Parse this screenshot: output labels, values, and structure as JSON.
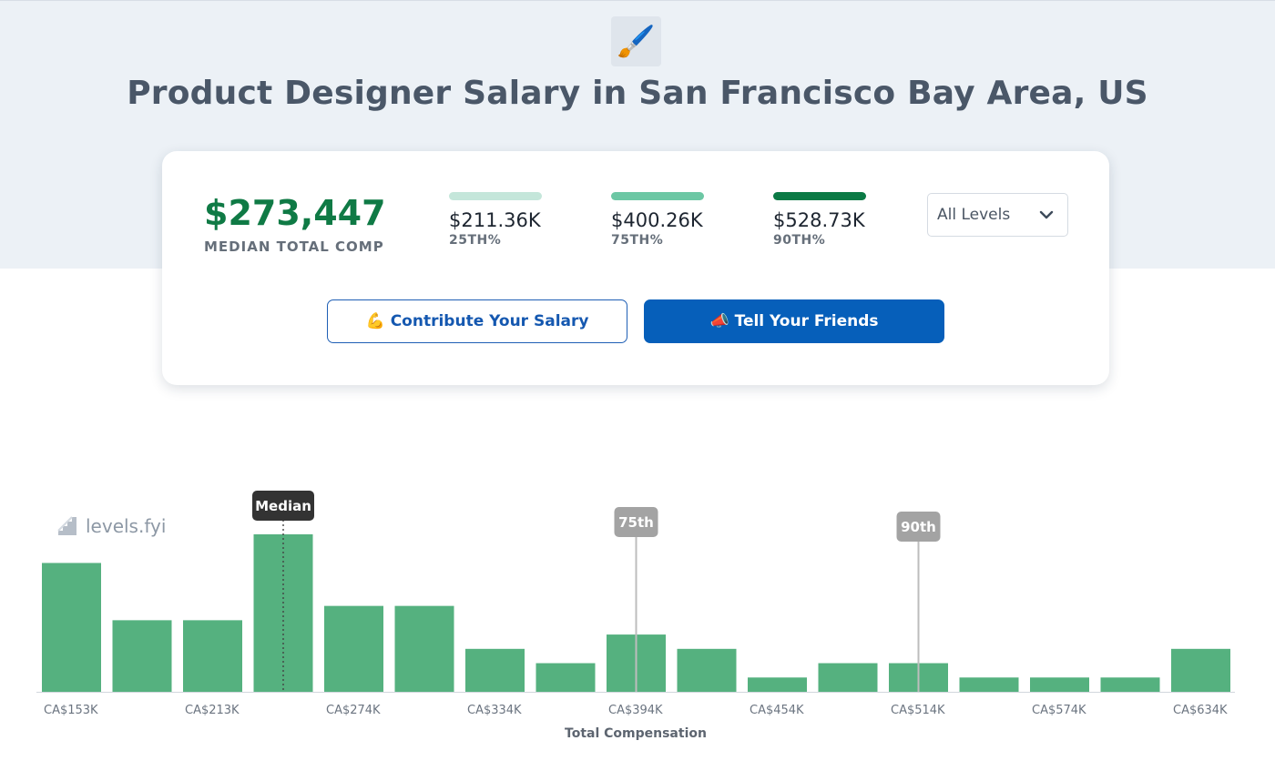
{
  "page": {
    "icon": "paintbrush-icon",
    "icon_glyph": "🖌️",
    "title": "Product Designer Salary in San Francisco Bay Area, US"
  },
  "summary": {
    "median_value": "$273,447",
    "median_label": "MEDIAN TOTAL COMP",
    "percentiles": [
      {
        "value": "$211.36K",
        "label": "25TH%",
        "color": "#c4e6da"
      },
      {
        "value": "$400.26K",
        "label": "75TH%",
        "color": "#6cc7a4"
      },
      {
        "value": "$528.73K",
        "label": "90TH%",
        "color": "#0b7a45"
      }
    ],
    "level_select": {
      "selected": "All Levels"
    }
  },
  "actions": {
    "contribute": {
      "emoji": "💪",
      "label": "Contribute Your Salary"
    },
    "tell_friends": {
      "emoji": "📣",
      "label": "Tell Your Friends"
    }
  },
  "colors": {
    "accent_green": "#0f7a45",
    "bar": "#55b17f",
    "primary_blue": "#065fba"
  },
  "watermark": {
    "text": "levels.fyi"
  },
  "chart_data": {
    "type": "bar",
    "xlabel": "Total Compensation",
    "ylabel": "",
    "tick_labels": [
      "CA$153K",
      "CA$213K",
      "CA$274K",
      "CA$334K",
      "CA$394K",
      "CA$454K",
      "CA$514K",
      "CA$574K",
      "CA$634K"
    ],
    "bin_width_k": 30,
    "bin_start_k": [
      153,
      183,
      213,
      243,
      274,
      304,
      334,
      364,
      394,
      424,
      454,
      484,
      514,
      544,
      574,
      604,
      634
    ],
    "values": [
      9,
      5,
      5,
      11,
      6,
      6,
      3,
      2,
      4,
      3,
      1,
      2,
      2,
      1,
      1,
      1,
      3
    ],
    "markers": [
      {
        "label": "Median",
        "bin_index": 3,
        "style": "dark"
      },
      {
        "label": "75th",
        "bin_index": 8,
        "style": "grey"
      },
      {
        "label": "90th",
        "bin_index": 12,
        "style": "grey"
      }
    ],
    "grid": false
  }
}
